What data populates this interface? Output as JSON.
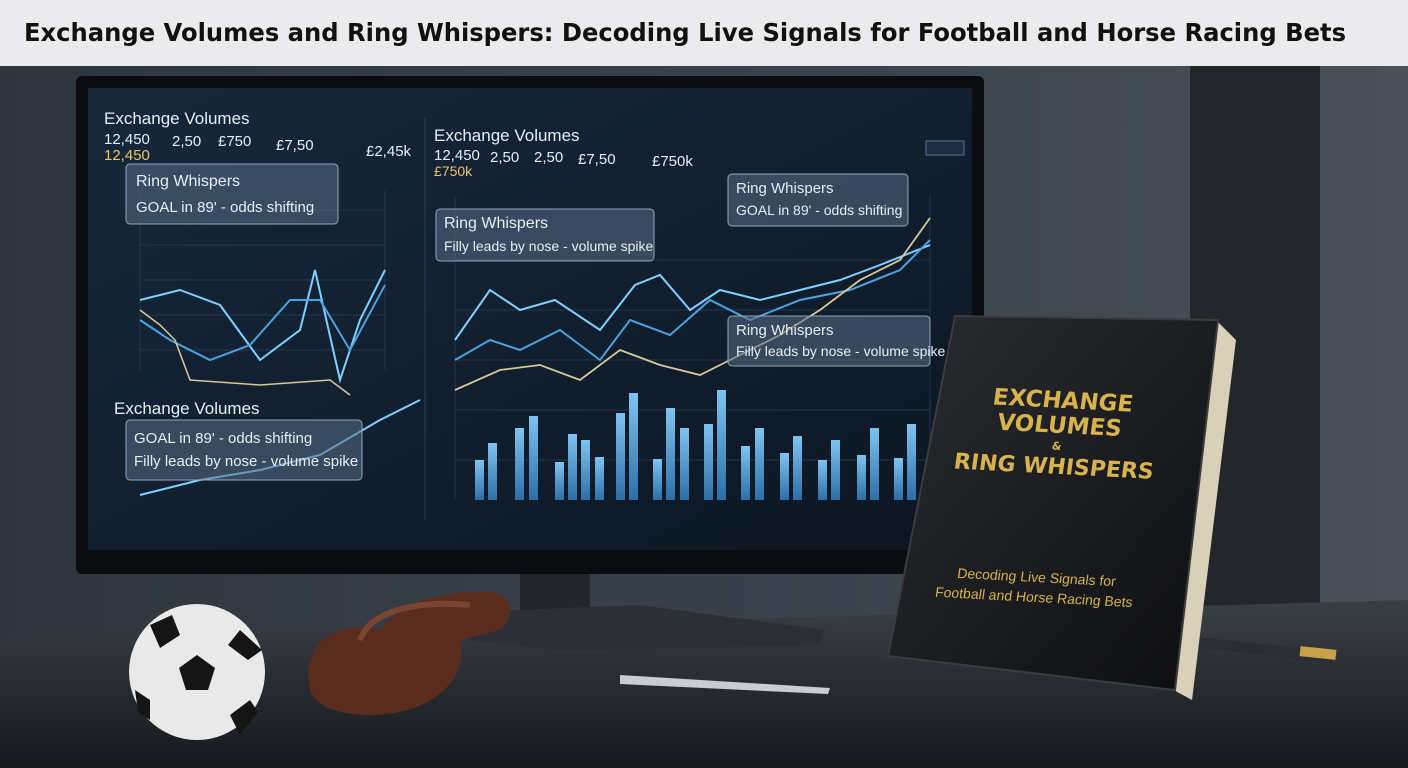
{
  "header": {
    "title": "Exchange Volumes and Ring Whispers: Decoding Live Signals for Football and Horse Racing Bets"
  },
  "screen": {
    "left_panel": {
      "title": "Exchange Volumes",
      "stats": [
        "12,450",
        "2,50",
        "£750",
        "£7,50",
        "£2,45k"
      ],
      "highlight": "12,450"
    },
    "right_panel": {
      "title": "Exchange Volumes",
      "stats": [
        "12,450",
        "2,50",
        "2,50",
        "£7,50",
        "£750k"
      ],
      "highlight": "£750k"
    },
    "lower_left_title": "Exchange Volumes",
    "callouts": [
      {
        "heading": "Ring Whispers",
        "text": "GOAL in 89' - odds shifting"
      },
      {
        "heading": "Ring Whispers",
        "text": "Filly leads by nose - volume spike"
      },
      {
        "heading": "Ring Whispers",
        "text": "GOAL in 89' - odds shifting"
      },
      {
        "heading": "Ring Whispers",
        "text": "Filly leads by nose - volume spike"
      },
      {
        "lines": [
          "GOAL in 89' - odds shifting",
          "Filly leads by nose - volume spike"
        ]
      }
    ]
  },
  "book": {
    "title_lines": [
      "EXCHANGE",
      "VOLUMES",
      "&",
      "RING WHISPERS"
    ],
    "subtitle_lines": [
      "Decoding Live Signals for",
      "Football and Horse Racing Bets"
    ]
  }
}
